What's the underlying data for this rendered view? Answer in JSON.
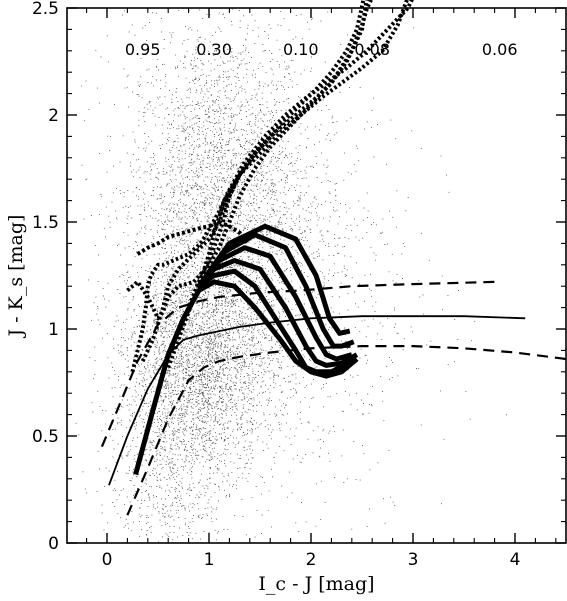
{
  "chart_data": {
    "type": "scatter",
    "xlabel": "I_c - J [mag]",
    "ylabel": "J - K_s [mag]",
    "xlim": [
      -0.35,
      4.5
    ],
    "ylim": [
      0,
      2.5
    ],
    "x_ticks": [
      "0",
      "1",
      "2",
      "3",
      "4"
    ],
    "y_ticks": [
      "0",
      "0.5",
      "1",
      "1.5",
      "2",
      "2.5"
    ],
    "grid": false,
    "legend": "none",
    "annotations": [
      {
        "text": "0.95",
        "x": 0.35,
        "y": 2.28
      },
      {
        "text": "0.30",
        "x": 1.05,
        "y": 2.28
      },
      {
        "text": "0.10",
        "x": 1.9,
        "y": 2.28
      },
      {
        "text": "0.08",
        "x": 2.6,
        "y": 2.28
      },
      {
        "text": "0.06",
        "x": 3.85,
        "y": 2.28
      }
    ],
    "scatter_cloud": {
      "clusters": [
        {
          "cx": 1.1,
          "cy": 1.6,
          "sx": 0.45,
          "sy": 0.42,
          "n": 3200
        },
        {
          "cx": 0.95,
          "cy": 0.85,
          "sx": 0.35,
          "sy": 0.25,
          "n": 2600
        },
        {
          "cx": 0.6,
          "cy": 0.45,
          "sx": 0.3,
          "sy": 0.3,
          "n": 900
        },
        {
          "cx": 1.6,
          "cy": 1.2,
          "sx": 0.7,
          "sy": 0.6,
          "n": 1200
        }
      ]
    },
    "series": [
      {
        "style": "solid-thin",
        "x": [
          0.02,
          0.2,
          0.4,
          0.6,
          0.75,
          0.9,
          1.1,
          1.3,
          1.6,
          2.0,
          2.5,
          3.0,
          3.5,
          4.1
        ],
        "y": [
          0.27,
          0.5,
          0.72,
          0.88,
          0.95,
          0.97,
          0.99,
          1.01,
          1.03,
          1.05,
          1.06,
          1.06,
          1.06,
          1.05
        ]
      },
      {
        "style": "dashed",
        "x": [
          -0.05,
          0.1,
          0.3,
          0.5,
          0.7,
          0.9,
          1.1,
          1.3,
          1.5,
          1.9,
          2.4,
          3.0,
          3.8
        ],
        "y": [
          0.45,
          0.62,
          0.85,
          1.02,
          1.1,
          1.13,
          1.15,
          1.16,
          1.17,
          1.18,
          1.2,
          1.21,
          1.22
        ]
      },
      {
        "style": "dashed",
        "x": [
          0.2,
          0.4,
          0.6,
          0.8,
          0.95,
          1.1,
          1.3,
          1.6,
          2.0,
          2.5,
          3.0,
          3.5,
          4.0,
          4.5
        ],
        "y": [
          0.13,
          0.35,
          0.58,
          0.76,
          0.82,
          0.85,
          0.87,
          0.89,
          0.91,
          0.92,
          0.92,
          0.91,
          0.89,
          0.86
        ]
      },
      {
        "style": "thick",
        "x": [
          0.28,
          0.45,
          0.6,
          0.75,
          0.9,
          1.05,
          1.25,
          1.45,
          1.7,
          1.85,
          2.0,
          2.15,
          2.3,
          2.45
        ],
        "y": [
          0.32,
          0.62,
          0.88,
          1.05,
          1.18,
          1.22,
          1.2,
          1.1,
          0.95,
          0.85,
          0.8,
          0.78,
          0.8,
          0.86
        ]
      },
      {
        "style": "thick",
        "x": [
          0.9,
          1.05,
          1.25,
          1.45,
          1.65,
          1.85,
          1.95,
          2.05,
          2.2,
          2.4
        ],
        "y": [
          1.2,
          1.25,
          1.27,
          1.2,
          1.05,
          0.9,
          0.82,
          0.8,
          0.8,
          0.85
        ]
      },
      {
        "style": "thick",
        "x": [
          0.9,
          1.05,
          1.25,
          1.5,
          1.75,
          1.95,
          2.05,
          2.15,
          2.3,
          2.45
        ],
        "y": [
          1.2,
          1.28,
          1.32,
          1.28,
          1.1,
          0.92,
          0.85,
          0.83,
          0.84,
          0.88
        ]
      },
      {
        "style": "thick",
        "x": [
          0.9,
          1.1,
          1.35,
          1.6,
          1.85,
          2.05,
          2.15,
          2.25,
          2.4
        ],
        "y": [
          1.2,
          1.32,
          1.38,
          1.34,
          1.15,
          0.96,
          0.88,
          0.86,
          0.88
        ]
      },
      {
        "style": "thick",
        "x": [
          0.9,
          1.15,
          1.45,
          1.75,
          1.95,
          2.12,
          2.22,
          2.3,
          2.42
        ],
        "y": [
          1.2,
          1.36,
          1.44,
          1.38,
          1.2,
          1.0,
          0.92,
          0.92,
          0.94
        ]
      },
      {
        "style": "thick",
        "x": [
          0.9,
          1.2,
          1.55,
          1.85,
          2.05,
          2.18,
          2.28,
          2.38
        ],
        "y": [
          1.2,
          1.4,
          1.48,
          1.42,
          1.25,
          1.05,
          0.98,
          0.99
        ]
      },
      {
        "style": "dotted",
        "x": [
          0.25,
          0.3,
          0.35,
          0.38,
          0.4,
          0.43,
          0.5,
          0.55,
          0.65,
          0.8,
          0.92,
          1.02,
          1.1,
          1.2,
          1.35,
          1.55,
          1.75,
          1.95,
          2.15,
          2.35,
          2.55,
          2.75,
          2.95,
          3.0
        ],
        "y": [
          0.8,
          0.9,
          1.0,
          1.1,
          1.2,
          1.25,
          1.3,
          1.3,
          1.32,
          1.35,
          1.4,
          1.48,
          1.55,
          1.65,
          1.78,
          1.9,
          2.0,
          2.08,
          2.15,
          2.22,
          2.3,
          2.4,
          2.5,
          2.55
        ]
      },
      {
        "style": "dotted",
        "x": [
          0.35,
          0.45,
          0.55,
          0.6,
          0.7,
          0.85,
          1.0,
          1.1,
          1.2,
          1.3,
          1.45,
          1.65,
          1.85,
          2.05,
          2.2,
          2.35,
          2.5,
          2.55
        ],
        "y": [
          0.85,
          0.95,
          1.1,
          1.2,
          1.28,
          1.35,
          1.42,
          1.5,
          1.62,
          1.72,
          1.82,
          1.92,
          2.0,
          2.08,
          2.15,
          2.25,
          2.4,
          2.55
        ]
      },
      {
        "style": "dotted",
        "x": [
          0.2,
          0.3,
          0.4,
          0.5,
          0.55,
          0.6,
          0.7,
          0.85,
          1.0,
          1.1,
          1.2,
          1.3,
          1.45,
          1.6,
          1.8,
          2.0,
          2.2,
          2.4,
          2.5,
          2.55,
          2.6
        ],
        "y": [
          1.18,
          1.22,
          1.15,
          1.05,
          1.08,
          1.15,
          1.2,
          1.22,
          1.3,
          1.38,
          1.5,
          1.62,
          1.75,
          1.85,
          1.95,
          2.05,
          2.15,
          2.3,
          2.42,
          2.5,
          2.55
        ]
      },
      {
        "style": "dotted",
        "x": [
          0.7,
          0.8,
          0.9,
          1.0,
          1.08,
          1.15,
          1.2,
          1.3,
          1.45,
          1.6,
          1.75,
          1.9,
          2.05,
          2.2,
          2.35,
          2.45,
          2.52
        ],
        "y": [
          0.98,
          1.1,
          1.22,
          1.32,
          1.42,
          1.52,
          1.62,
          1.72,
          1.82,
          1.9,
          1.98,
          2.05,
          2.12,
          2.2,
          2.3,
          2.4,
          2.55
        ]
      },
      {
        "style": "dotted",
        "x": [
          0.6,
          0.7,
          0.8,
          0.9,
          1.0,
          1.05,
          1.15,
          1.3,
          1.5,
          1.7,
          1.9,
          2.1,
          2.3,
          2.5,
          2.7,
          2.85,
          2.95
        ],
        "y": [
          0.82,
          0.95,
          1.08,
          1.2,
          1.35,
          1.45,
          1.6,
          1.72,
          1.82,
          1.92,
          2.0,
          2.08,
          2.15,
          2.22,
          2.3,
          2.42,
          2.55
        ]
      },
      {
        "style": "dotted-medium",
        "x": [
          0.3,
          0.4,
          0.5,
          0.6,
          0.75,
          0.9,
          1.0,
          1.1,
          1.2,
          1.3,
          1.38
        ],
        "y": [
          1.35,
          1.38,
          1.4,
          1.43,
          1.45,
          1.47,
          1.48,
          1.5,
          1.48,
          1.45,
          1.4
        ]
      }
    ]
  }
}
